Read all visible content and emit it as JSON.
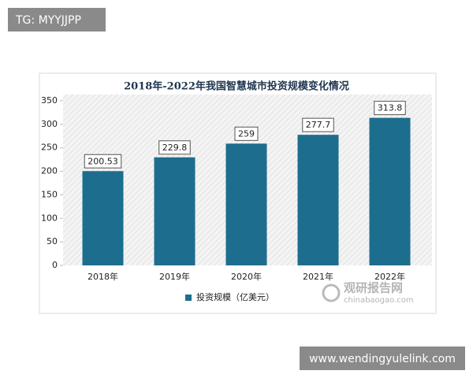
{
  "chart_data": {
    "type": "bar",
    "title": "2018年-2022年我国智慧城市投资规模变化情况",
    "categories": [
      "2018年",
      "2019年",
      "2020年",
      "2021年",
      "2022年"
    ],
    "series": [
      {
        "name": "投资规模（亿美元）",
        "color": "#1d6e8e",
        "values": [
          200.53,
          229.8,
          259,
          277.7,
          313.8
        ]
      }
    ],
    "ylim": [
      0,
      350
    ],
    "yticks": [
      0,
      50,
      100,
      150,
      200,
      250,
      300,
      350
    ],
    "legend": "bottom",
    "watermark": [
      "观研报告网",
      "chinabaogao.com"
    ]
  },
  "overlays": {
    "tag": "TG: MYYJJPP",
    "site": "www.wendingyulelink.com"
  }
}
